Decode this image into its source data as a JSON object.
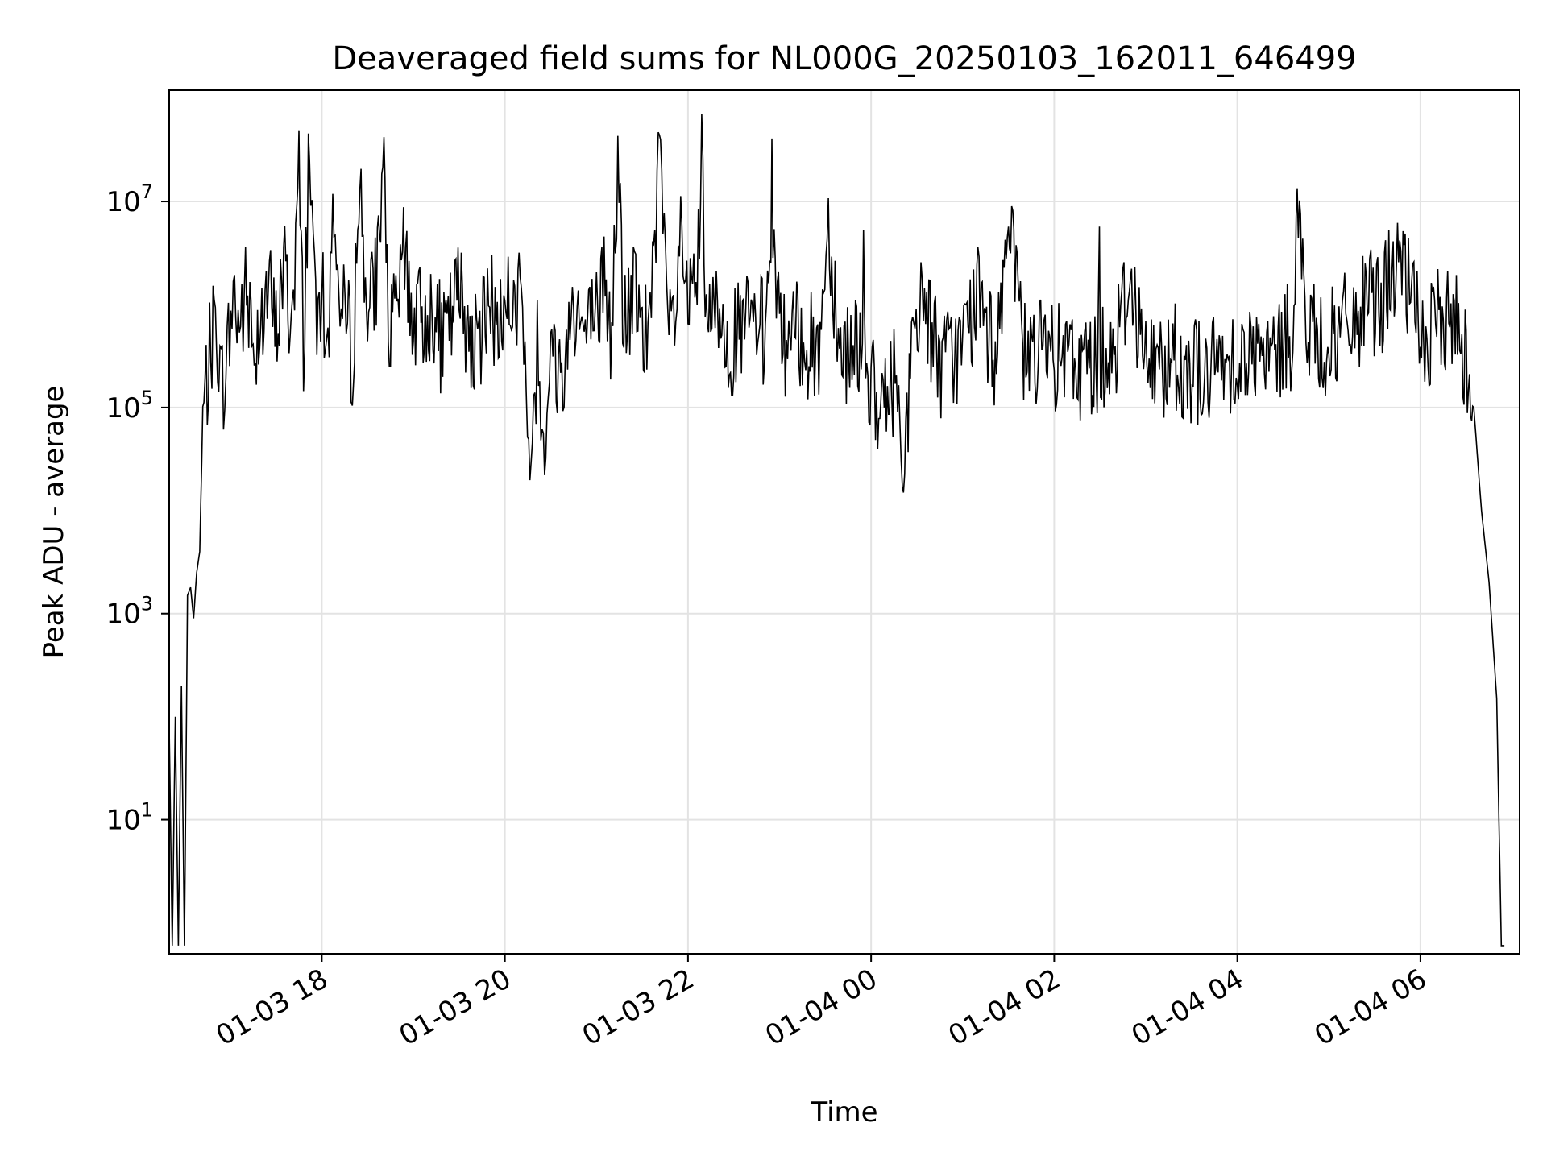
{
  "chart_data": {
    "type": "line",
    "title": "Deaveraged field sums for NL000G_20250103_162011_646499",
    "xlabel": "Time",
    "ylabel": "Peak ADU - average",
    "yscale": "log",
    "xlim": [
      "2025-01-03T16:20",
      "2025-01-04T07:05"
    ],
    "ylim": [
      0.5,
      120000000.0
    ],
    "grid": true,
    "x_ticks": [
      "2025-01-03T18:00",
      "2025-01-03T20:00",
      "2025-01-03T22:00",
      "2025-01-04T00:00",
      "2025-01-04T02:00",
      "2025-01-04T04:00",
      "2025-01-04T06:00"
    ],
    "x_tick_labels": [
      "01-03 18",
      "01-03 20",
      "01-03 22",
      "01-04 00",
      "01-04 02",
      "01-04 04",
      "01-04 06"
    ],
    "y_ticks": [
      10,
      1000,
      100000,
      10000000
    ],
    "y_tick_labels": [
      {
        "base": "10",
        "exp": "1"
      },
      {
        "base": "10",
        "exp": "3"
      },
      {
        "base": "10",
        "exp": "5"
      },
      {
        "base": "10",
        "exp": "7"
      }
    ],
    "series": [
      {
        "color": "#000000",
        "points": [
          [
            "2025-01-03T16:20",
            80
          ],
          [
            "2025-01-03T16:22",
            0.6
          ],
          [
            "2025-01-03T16:24",
            100
          ],
          [
            "2025-01-03T16:26",
            0.6
          ],
          [
            "2025-01-03T16:28",
            200
          ],
          [
            "2025-01-03T16:30",
            0.6
          ],
          [
            "2025-01-03T16:32",
            1500
          ],
          [
            "2025-01-03T16:34",
            1800
          ],
          [
            "2025-01-03T16:36",
            900
          ],
          [
            "2025-01-03T16:38",
            2500
          ],
          [
            "2025-01-03T16:40",
            4000
          ],
          [
            "2025-01-03T16:42",
            80000
          ],
          [
            "2025-01-03T16:45",
            200000
          ],
          [
            "2025-01-03T16:48",
            450000
          ],
          [
            "2025-01-03T16:51",
            800000
          ],
          [
            "2025-01-03T16:54",
            150000
          ],
          [
            "2025-01-03T16:58",
            300000
          ],
          [
            "2025-01-03T17:02",
            1300000
          ],
          [
            "2025-01-03T17:06",
            600000
          ],
          [
            "2025-01-03T17:10",
            1200000
          ],
          [
            "2025-01-03T17:15",
            400000
          ],
          [
            "2025-01-03T17:20",
            700000
          ],
          [
            "2025-01-03T17:25",
            1500000
          ],
          [
            "2025-01-03T17:30",
            500000
          ],
          [
            "2025-01-03T17:35",
            2500000
          ],
          [
            "2025-01-03T17:40",
            600000
          ],
          [
            "2025-01-03T17:45",
            18000000
          ],
          [
            "2025-01-03T17:48",
            400000
          ],
          [
            "2025-01-03T17:52",
            55000000
          ],
          [
            "2025-01-03T17:56",
            500000
          ],
          [
            "2025-01-03T18:00",
            1200000
          ],
          [
            "2025-01-03T18:04",
            350000
          ],
          [
            "2025-01-03T18:08",
            14000000
          ],
          [
            "2025-01-03T18:12",
            600000
          ],
          [
            "2025-01-03T18:16",
            800000
          ],
          [
            "2025-01-03T18:20",
            300000
          ],
          [
            "2025-01-03T18:25",
            16000000
          ],
          [
            "2025-01-03T18:30",
            700000
          ],
          [
            "2025-01-03T18:35",
            1500000
          ],
          [
            "2025-01-03T18:40",
            16000000
          ],
          [
            "2025-01-03T18:45",
            400000
          ],
          [
            "2025-01-03T18:50",
            1100000
          ],
          [
            "2025-01-03T18:55",
            3500000
          ],
          [
            "2025-01-03T19:00",
            600000
          ],
          [
            "2025-01-03T19:10",
            900000
          ],
          [
            "2025-01-03T19:20",
            400000
          ],
          [
            "2025-01-03T19:30",
            1400000
          ],
          [
            "2025-01-03T19:40",
            350000
          ],
          [
            "2025-01-03T19:50",
            900000
          ],
          [
            "2025-01-03T20:00",
            700000
          ],
          [
            "2025-01-03T20:10",
            1200000
          ],
          [
            "2025-01-03T20:14",
            90000
          ],
          [
            "2025-01-03T20:18",
            30000
          ],
          [
            "2025-01-03T20:22",
            200000
          ],
          [
            "2025-01-03T20:26",
            60000
          ],
          [
            "2025-01-03T20:30",
            300000
          ],
          [
            "2025-01-03T20:38",
            200000
          ],
          [
            "2025-01-03T20:45",
            1200000
          ],
          [
            "2025-01-03T20:52",
            500000
          ],
          [
            "2025-01-03T21:00",
            700000
          ],
          [
            "2025-01-03T21:05",
            2000000
          ],
          [
            "2025-01-03T21:10",
            400000
          ],
          [
            "2025-01-03T21:14",
            28000000
          ],
          [
            "2025-01-03T21:18",
            600000
          ],
          [
            "2025-01-03T21:25",
            1300000
          ],
          [
            "2025-01-03T21:30",
            400000
          ],
          [
            "2025-01-03T21:36",
            900000
          ],
          [
            "2025-01-03T21:42",
            40000000
          ],
          [
            "2025-01-03T21:46",
            500000
          ],
          [
            "2025-01-03T21:52",
            800000
          ],
          [
            "2025-01-03T21:56",
            6000000
          ],
          [
            "2025-01-03T22:00",
            600000
          ],
          [
            "2025-01-03T22:06",
            2000000
          ],
          [
            "2025-01-03T22:09",
            20000000
          ],
          [
            "2025-01-03T22:12",
            500000
          ],
          [
            "2025-01-03T22:20",
            900000
          ],
          [
            "2025-01-03T22:30",
            400000
          ],
          [
            "2025-01-03T22:40",
            700000
          ],
          [
            "2025-01-03T22:50",
            500000
          ],
          [
            "2025-01-03T22:55",
            14000000
          ],
          [
            "2025-01-03T23:00",
            400000
          ],
          [
            "2025-01-03T23:15",
            500000
          ],
          [
            "2025-01-03T23:25",
            300000
          ],
          [
            "2025-01-03T23:32",
            6000000
          ],
          [
            "2025-01-03T23:40",
            350000
          ],
          [
            "2025-01-03T23:55",
            500000
          ],
          [
            "2025-01-04T00:05",
            60000
          ],
          [
            "2025-01-04T00:15",
            200000
          ],
          [
            "2025-01-04T00:22",
            40000
          ],
          [
            "2025-01-04T00:28",
            400000
          ],
          [
            "2025-01-04T00:35",
            1200000
          ],
          [
            "2025-01-04T00:45",
            250000
          ],
          [
            "2025-01-04T01:00",
            400000
          ],
          [
            "2025-01-04T01:10",
            1200000
          ],
          [
            "2025-01-04T01:20",
            300000
          ],
          [
            "2025-01-04T01:30",
            5000000
          ],
          [
            "2025-01-04T01:40",
            350000
          ],
          [
            "2025-01-04T02:00",
            300000
          ],
          [
            "2025-01-04T02:20",
            250000
          ],
          [
            "2025-01-04T02:40",
            400000
          ],
          [
            "2025-01-04T02:50",
            2000000
          ],
          [
            "2025-01-04T03:00",
            250000
          ],
          [
            "2025-01-04T03:20",
            300000
          ],
          [
            "2025-01-04T03:40",
            200000
          ],
          [
            "2025-01-04T04:00",
            350000
          ],
          [
            "2025-01-04T04:20",
            250000
          ],
          [
            "2025-01-04T04:35",
            500000
          ],
          [
            "2025-01-04T04:40",
            10000000
          ],
          [
            "2025-01-04T04:45",
            500000
          ],
          [
            "2025-01-04T05:00",
            400000
          ],
          [
            "2025-01-04T05:20",
            800000
          ],
          [
            "2025-01-04T05:35",
            1200000
          ],
          [
            "2025-01-04T05:45",
            2500000
          ],
          [
            "2025-01-04T05:55",
            1000000
          ],
          [
            "2025-01-04T06:05",
            400000
          ],
          [
            "2025-01-04T06:15",
            800000
          ],
          [
            "2025-01-04T06:25",
            600000
          ],
          [
            "2025-01-04T06:30",
            300000
          ],
          [
            "2025-01-04T06:35",
            100000
          ],
          [
            "2025-01-04T06:40",
            10000
          ],
          [
            "2025-01-04T06:45",
            2000
          ],
          [
            "2025-01-04T06:50",
            150
          ],
          [
            "2025-01-04T06:53",
            0.6
          ],
          [
            "2025-01-04T06:55",
            0.6
          ]
        ]
      }
    ]
  }
}
